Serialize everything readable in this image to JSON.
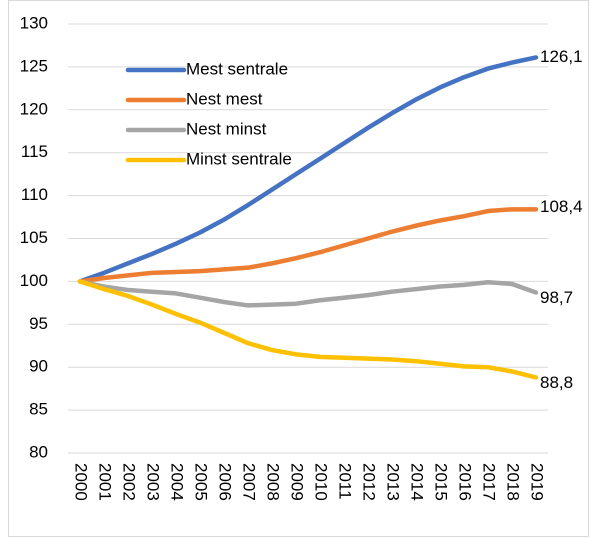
{
  "chart_data": {
    "type": "line",
    "categories": [
      "2000",
      "2001",
      "2002",
      "2003",
      "2004",
      "2005",
      "2006",
      "2007",
      "2008",
      "2009",
      "2010",
      "2011",
      "2012",
      "2013",
      "2014",
      "2015",
      "2016",
      "2017",
      "2018",
      "2019"
    ],
    "ylim": [
      80,
      130
    ],
    "yticks": [
      80,
      85,
      90,
      95,
      100,
      105,
      110,
      115,
      120,
      125,
      130
    ],
    "grid": true,
    "legend": "upper left",
    "series": [
      {
        "name": "Mest sentrale",
        "color": "#4472c4",
        "values": [
          100,
          101,
          102.1,
          103.2,
          104.4,
          105.7,
          107.2,
          108.9,
          110.7,
          112.5,
          114.3,
          116.1,
          117.9,
          119.6,
          121.2,
          122.6,
          123.8,
          124.8,
          125.5,
          126.1
        ],
        "value_labels": [
          null,
          null,
          null,
          null,
          null,
          null,
          null,
          null,
          null,
          null,
          null,
          null,
          null,
          null,
          null,
          null,
          null,
          null,
          null,
          "126,1"
        ]
      },
      {
        "name": "Nest mest",
        "color": "#ed7d31",
        "values": [
          100,
          100.4,
          100.7,
          101,
          101.1,
          101.2,
          101.4,
          101.6,
          102.1,
          102.7,
          103.4,
          104.2,
          105,
          105.8,
          106.5,
          107.1,
          107.6,
          108.2,
          108.4,
          108.4
        ],
        "value_labels": [
          null,
          null,
          null,
          null,
          null,
          null,
          null,
          null,
          null,
          null,
          null,
          null,
          null,
          null,
          null,
          null,
          null,
          null,
          null,
          "108,4"
        ]
      },
      {
        "name": "Nest minst",
        "color": "#a5a5a5",
        "values": [
          100,
          99.4,
          99,
          98.8,
          98.6,
          98.1,
          97.6,
          97.2,
          97.3,
          97.4,
          97.8,
          98.1,
          98.4,
          98.8,
          99.1,
          99.4,
          99.6,
          99.9,
          99.7,
          98.7
        ],
        "value_labels": [
          null,
          null,
          null,
          null,
          null,
          null,
          null,
          null,
          null,
          null,
          null,
          null,
          null,
          null,
          null,
          null,
          null,
          null,
          null,
          "98,7"
        ]
      },
      {
        "name": "Minst sentrale",
        "color": "#ffc000",
        "values": [
          100,
          99.1,
          98.3,
          97.3,
          96.2,
          95.2,
          94,
          92.8,
          92,
          91.5,
          91.2,
          91.1,
          91,
          90.9,
          90.7,
          90.4,
          90.1,
          90,
          89.5,
          88.8
        ],
        "value_labels": [
          null,
          null,
          null,
          null,
          null,
          null,
          null,
          null,
          null,
          null,
          null,
          null,
          null,
          null,
          null,
          null,
          null,
          null,
          null,
          "88,8"
        ]
      }
    ]
  }
}
